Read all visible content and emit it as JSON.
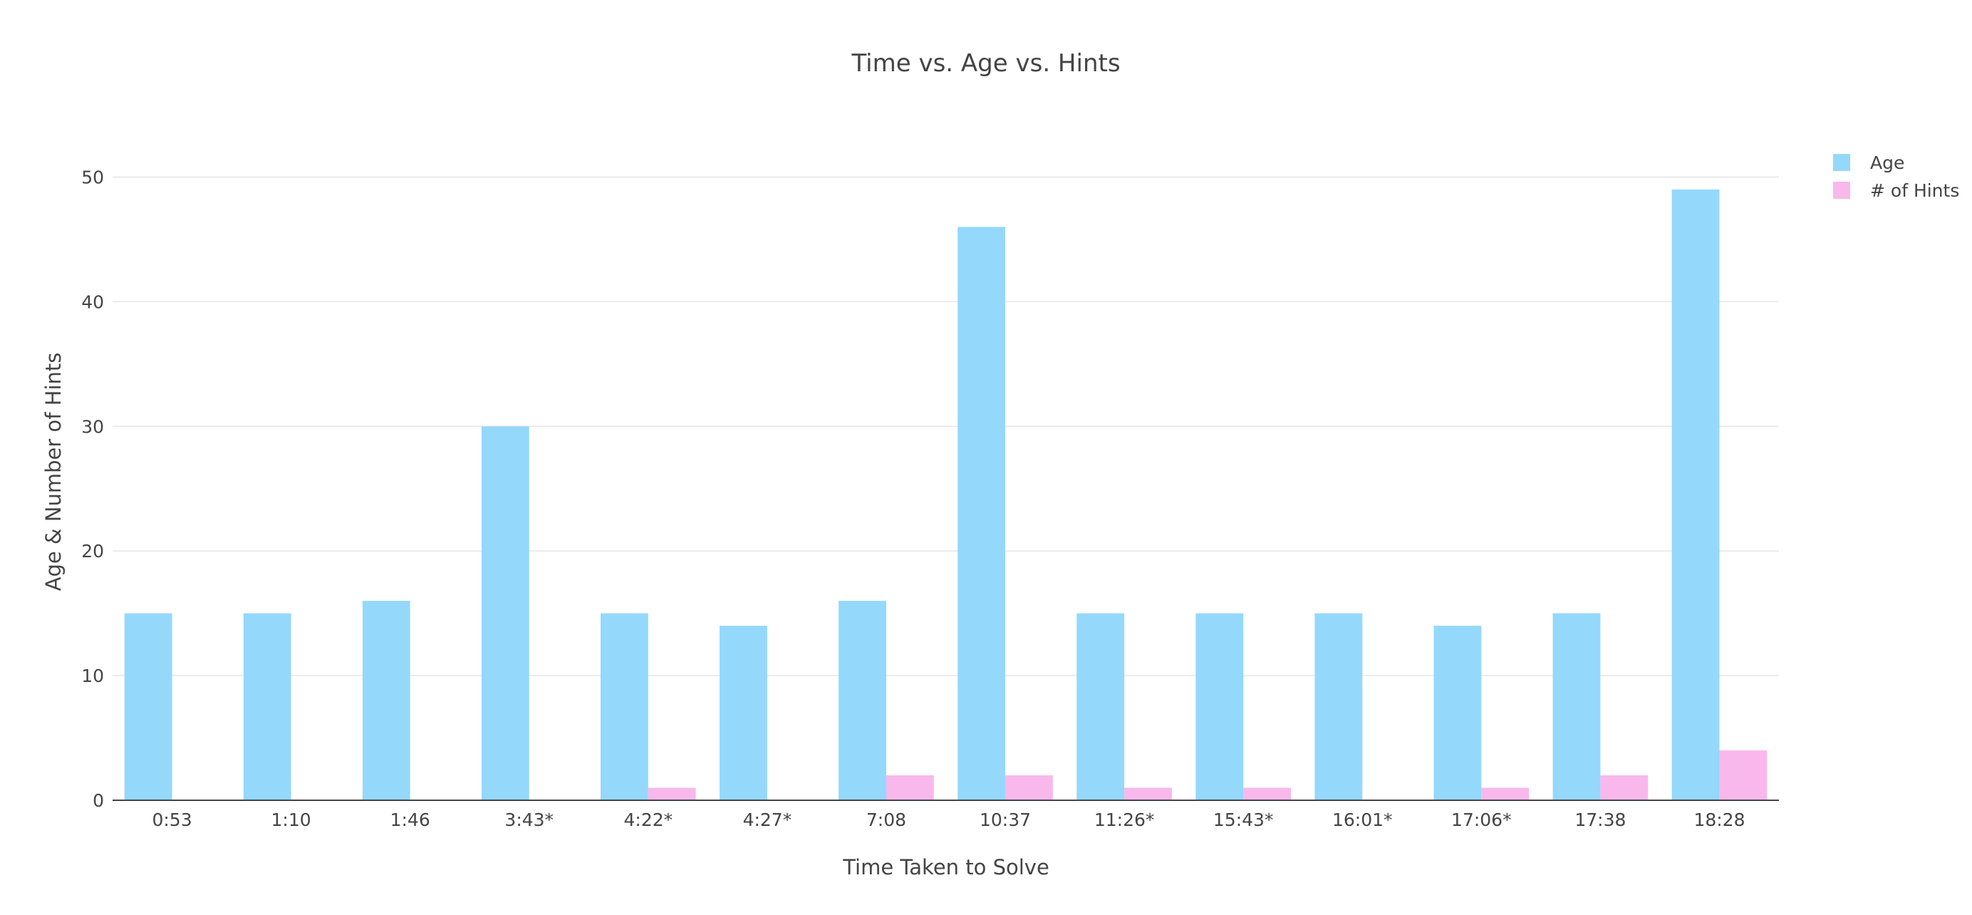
{
  "chart_data": {
    "type": "bar",
    "title": "Time vs. Age vs. Hints",
    "xlabel": "Time Taken to Solve",
    "ylabel": "Age & Number of Hints",
    "categories": [
      "0:53",
      "1:10",
      "1:46",
      "3:43*",
      "4:22*",
      "4:27*",
      "7:08",
      "10:37",
      "11:26*",
      "15:43*",
      "16:01*",
      "17:06*",
      "17:38",
      "18:28"
    ],
    "series": [
      {
        "name": "Age",
        "color": "#94d8fc",
        "values": [
          15,
          15,
          16,
          30,
          15,
          14,
          16,
          46,
          15,
          15,
          15,
          14,
          15,
          49
        ]
      },
      {
        "name": "# of Hints",
        "color": "#f8b8ec",
        "values": [
          0,
          0,
          0,
          0,
          1,
          0,
          2,
          2,
          1,
          1,
          0,
          1,
          2,
          4
        ]
      }
    ],
    "ylim": [
      0,
      52.2
    ],
    "yticks": [
      0,
      10,
      20,
      30,
      40,
      50
    ],
    "grid": true,
    "legend": "top-right"
  }
}
